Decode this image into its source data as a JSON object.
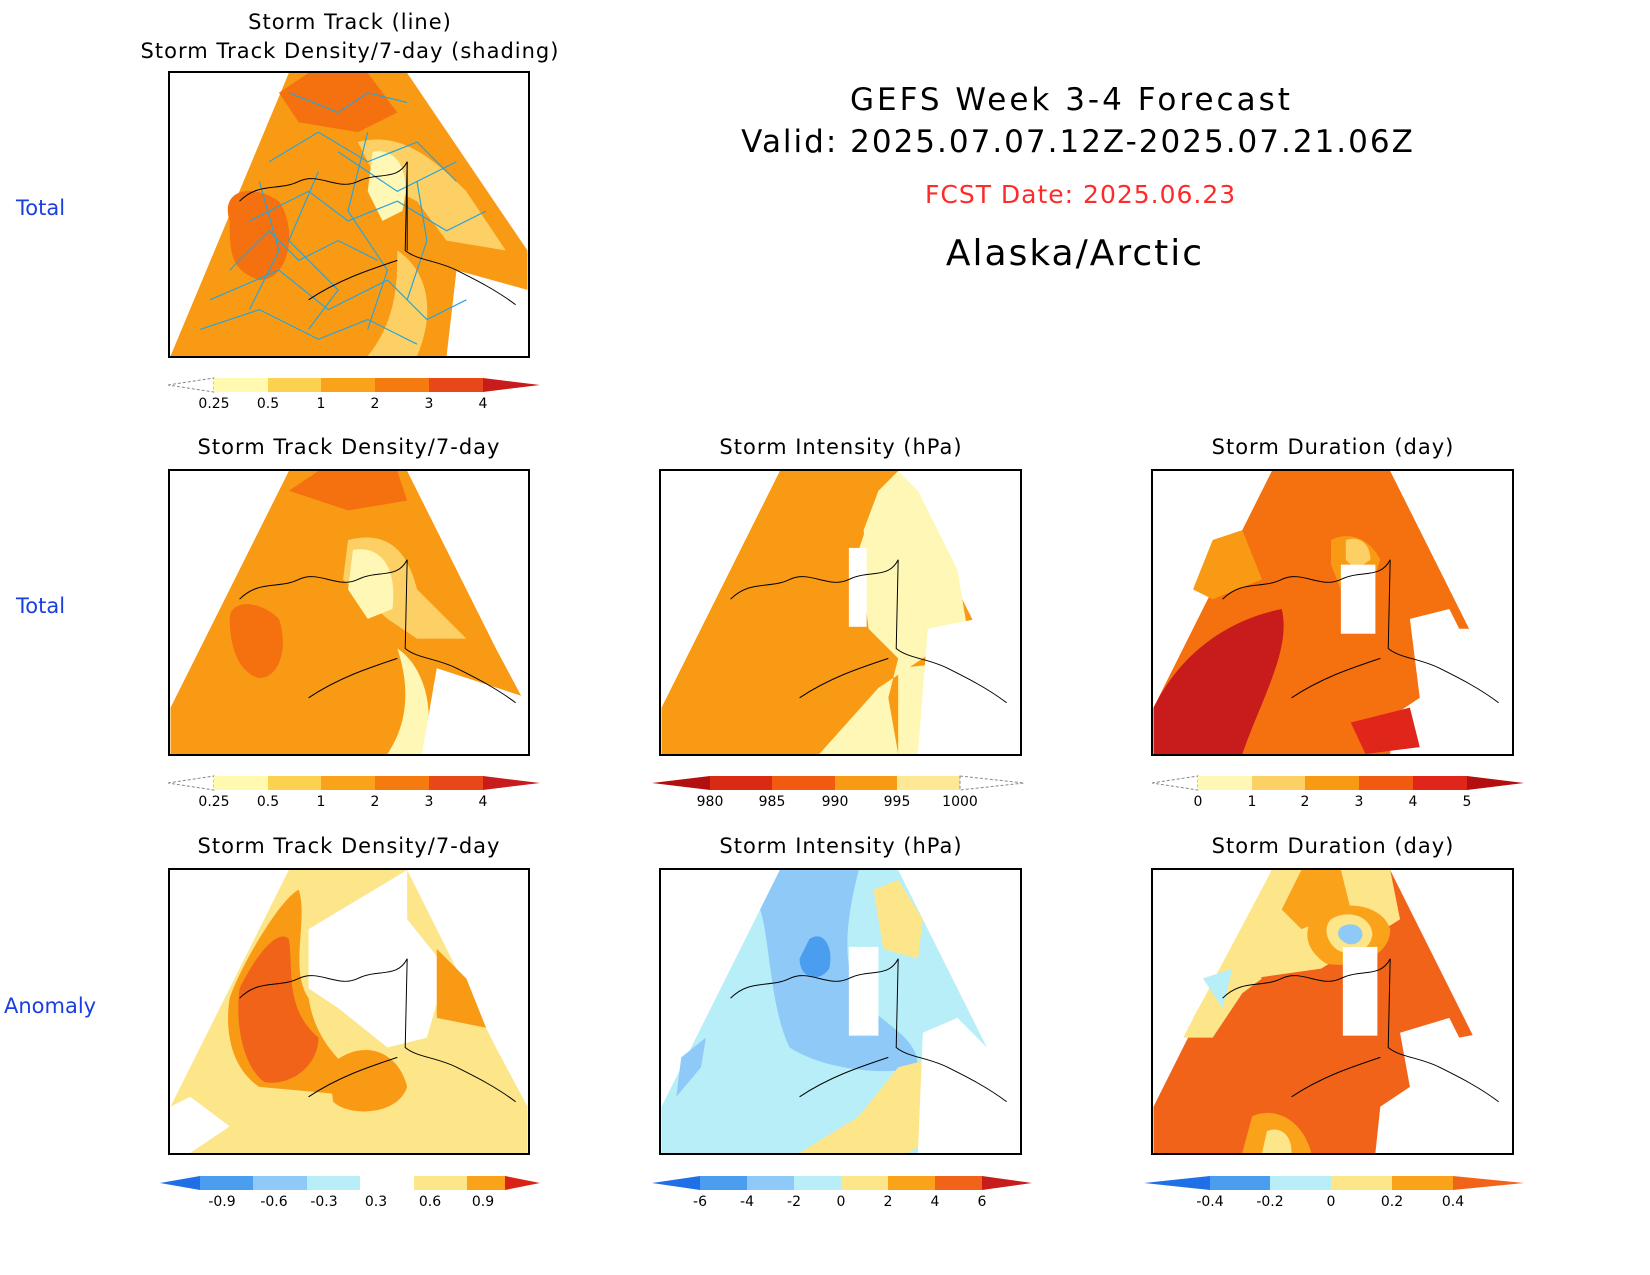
{
  "header": {
    "line1": "GEFS Week 3-4 Forecast",
    "line2": "Valid: 2025.07.07.12Z-2025.07.21.06Z",
    "fcst": "FCST Date: 2025.06.23",
    "region": "Alaska/Arctic",
    "fcst_color": "#ff2a2a"
  },
  "rows": {
    "top": "Total",
    "middle": "Total",
    "bottom": "Anomaly"
  },
  "panels": {
    "p1": {
      "title1": "Storm Track (line)",
      "title2": "Storm Track Density/7-day (shading)"
    },
    "p2": {
      "title": "Storm Track Density/7-day"
    },
    "p3": {
      "title": "Storm Intensity (hPa)"
    },
    "p4": {
      "title": "Storm Duration (day)"
    },
    "p5": {
      "title": "Storm Track Density/7-day"
    },
    "p6": {
      "title": "Storm Intensity (hPa)"
    },
    "p7": {
      "title": "Storm Duration (day)"
    }
  },
  "colorbars": {
    "density": {
      "labels": [
        "0.25",
        "0.5",
        "1",
        "2",
        "3",
        "4"
      ],
      "colors": [
        "#fffab0",
        "#fcd14d",
        "#f9a21a",
        "#f57a0f",
        "#e8471a",
        "#c81b1b"
      ]
    },
    "intensity": {
      "labels": [
        "980",
        "985",
        "990",
        "995",
        "1000"
      ],
      "colors": [
        "#b30f0f",
        "#d92a14",
        "#f25a0f",
        "#f99a15",
        "#fdd065",
        "#fff7b5"
      ]
    },
    "duration": {
      "labels": [
        "0",
        "1",
        "2",
        "3",
        "4",
        "5"
      ],
      "colors": [
        "#fff7b5",
        "#fcd065",
        "#f99a15",
        "#f25a0f",
        "#e0261a",
        "#b30f0f"
      ]
    },
    "density_anom": {
      "labels": [
        "-0.9",
        "-0.6",
        "-0.3",
        "0.3",
        "0.6",
        "0.9"
      ],
      "colors": [
        "#1f6fe6",
        "#4b9df0",
        "#8ec9f7",
        "#b8eef8",
        "#ffffff",
        "#fde58a",
        "#f9a21a",
        "#f2631a",
        "#d92314"
      ]
    },
    "intensity_anom": {
      "labels": [
        "-6",
        "-4",
        "-2",
        "0",
        "2",
        "4",
        "6"
      ],
      "colors": [
        "#1f6fe6",
        "#4b9df0",
        "#8ec9f7",
        "#b8eef8",
        "#fde58a",
        "#f9a21a",
        "#f2631a",
        "#c81b1b"
      ]
    },
    "duration_anom": {
      "labels": [
        "-0.4",
        "-0.2",
        "0",
        "0.2",
        "0.4"
      ],
      "colors": [
        "#1f6fe6",
        "#4b9df0",
        "#b8eef8",
        "#fde58a",
        "#f9a21a",
        "#f2631a"
      ]
    }
  },
  "map_colors": {
    "pale": "#fff7b5",
    "light": "#fcd065",
    "orange": "#f99a15",
    "dark_orange": "#f5700f",
    "red": "#e0261a",
    "deep_red": "#c81b1b",
    "blue_light": "#b8eef8",
    "blue_mid": "#8ec9f7",
    "blue_dark": "#4b9df0",
    "track_line": "#2aa4d8"
  }
}
